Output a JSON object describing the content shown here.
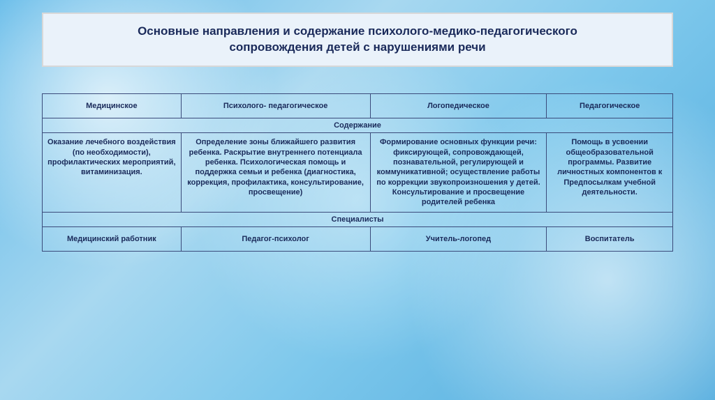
{
  "title": {
    "line1": "Основные направления и содержание психолого-медико-педагогического",
    "line2": "сопровождения детей с нарушениями речи"
  },
  "table": {
    "headers": [
      "Медицинское",
      "Психолого-\nпедагогическое",
      "Логопедическое",
      "Педагогическое"
    ],
    "section1": "Содержание",
    "content": [
      "Оказание лечебного воздействия (по необходимости), профилактических мероприятий, витаминизация.",
      "Определение зоны ближайшего развития ребенка. Раскрытие внутреннего потенциала ребенка. Психологическая помощь и поддержка семьи и ребенка (диагностика, коррекция, профилактика, консультирование, просвещение)",
      "Формирование основных функции речи: фиксирующей, сопровождающей, познавательной, регулирующей и коммуникативной; осуществление работы по коррекции звукопроизношения у детей. Консультирование и просвещение родителей ребенка",
      "Помощь в усвоении общеобразовательной программы. Развитие личностных компонентов к Предпосылкам учебной деятельности."
    ],
    "section2": "Специалисты",
    "specialists": [
      "Медицинский работник",
      "Педагог-психолог",
      "Учитель-логопед",
      "Воспитатель"
    ]
  },
  "colors": {
    "text": "#1a2a5a",
    "title_bg": "#eaf2fa",
    "border": "#3a4a7a"
  }
}
